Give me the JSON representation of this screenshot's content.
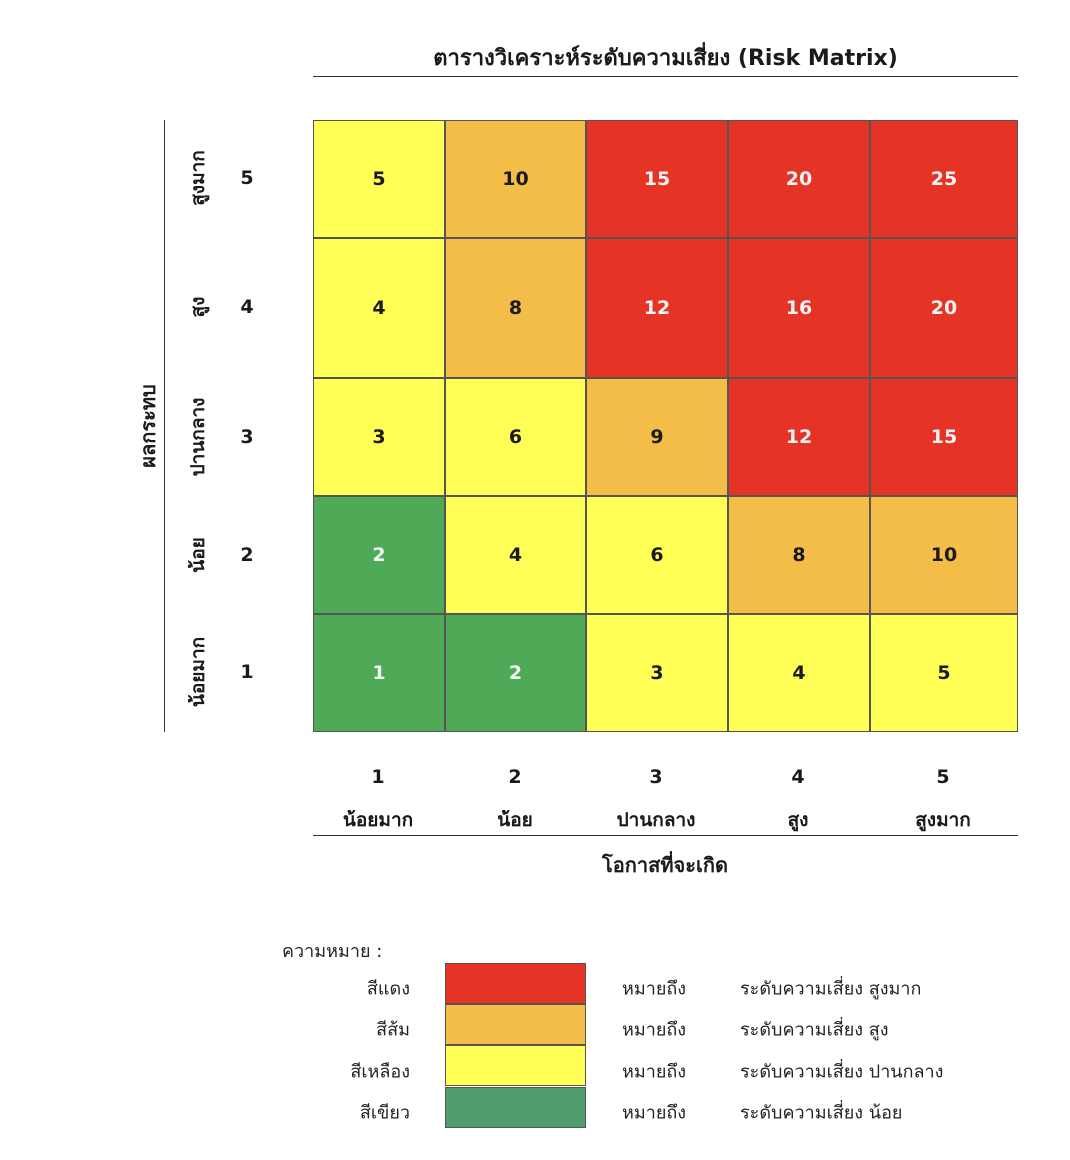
{
  "title": "ตารางวิเคราะห์ระดับความเสี่ยง (Risk Matrix)",
  "y_axis": {
    "title": "ผลกระทบ",
    "levels": [
      {
        "num": "5",
        "name": "สูงมาก"
      },
      {
        "num": "4",
        "name": "สูง"
      },
      {
        "num": "3",
        "name": "ปานกลาง"
      },
      {
        "num": "2",
        "name": "น้อย"
      },
      {
        "num": "1",
        "name": "น้อยมาก"
      }
    ]
  },
  "x_axis": {
    "title": "โอกาสที่จะเกิด",
    "levels": [
      {
        "num": "1",
        "name": "น้อยมาก"
      },
      {
        "num": "2",
        "name": "น้อย"
      },
      {
        "num": "3",
        "name": "ปานกลาง"
      },
      {
        "num": "4",
        "name": "สูง"
      },
      {
        "num": "5",
        "name": "สูงมาก"
      }
    ]
  },
  "colors": {
    "red": "#e53326",
    "orange": "#f3bd47",
    "yellow": "#ffff55",
    "green": "#4faa58",
    "legend_green": "#519d6b"
  },
  "matrix": {
    "rows": [
      {
        "cells": [
          {
            "value": "5",
            "color": "yellow"
          },
          {
            "value": "10",
            "color": "orange"
          },
          {
            "value": "15",
            "color": "red"
          },
          {
            "value": "20",
            "color": "red"
          },
          {
            "value": "25",
            "color": "red"
          }
        ]
      },
      {
        "cells": [
          {
            "value": "4",
            "color": "yellow"
          },
          {
            "value": "8",
            "color": "orange"
          },
          {
            "value": "12",
            "color": "red"
          },
          {
            "value": "16",
            "color": "red"
          },
          {
            "value": "20",
            "color": "red"
          }
        ]
      },
      {
        "cells": [
          {
            "value": "3",
            "color": "yellow"
          },
          {
            "value": "6",
            "color": "yellow"
          },
          {
            "value": "9",
            "color": "orange"
          },
          {
            "value": "12",
            "color": "red"
          },
          {
            "value": "15",
            "color": "red"
          }
        ]
      },
      {
        "cells": [
          {
            "value": "2",
            "color": "green"
          },
          {
            "value": "4",
            "color": "yellow"
          },
          {
            "value": "6",
            "color": "yellow"
          },
          {
            "value": "8",
            "color": "orange"
          },
          {
            "value": "10",
            "color": "orange"
          }
        ]
      },
      {
        "cells": [
          {
            "value": "1",
            "color": "green"
          },
          {
            "value": "2",
            "color": "green"
          },
          {
            "value": "3",
            "color": "yellow"
          },
          {
            "value": "4",
            "color": "yellow"
          },
          {
            "value": "5",
            "color": "yellow"
          }
        ]
      }
    ]
  },
  "legend": {
    "title": "ความหมาย :",
    "items": [
      {
        "name": "สีแดง",
        "color": "red",
        "means": "หมายถึง",
        "desc": "ระดับความเสี่ยง สูงมาก"
      },
      {
        "name": "สีส้ม",
        "color": "orange",
        "means": "หมายถึง",
        "desc": "ระดับความเสี่ยง สูง"
      },
      {
        "name": "สีเหลือง",
        "color": "yellow",
        "means": "หมายถึง",
        "desc": "ระดับความเสี่ยง ปานกลาง"
      },
      {
        "name": "สีเขียว",
        "color": "legend_green",
        "means": "หมายถึง",
        "desc": "ระดับความเสี่ยง น้อย"
      }
    ]
  }
}
